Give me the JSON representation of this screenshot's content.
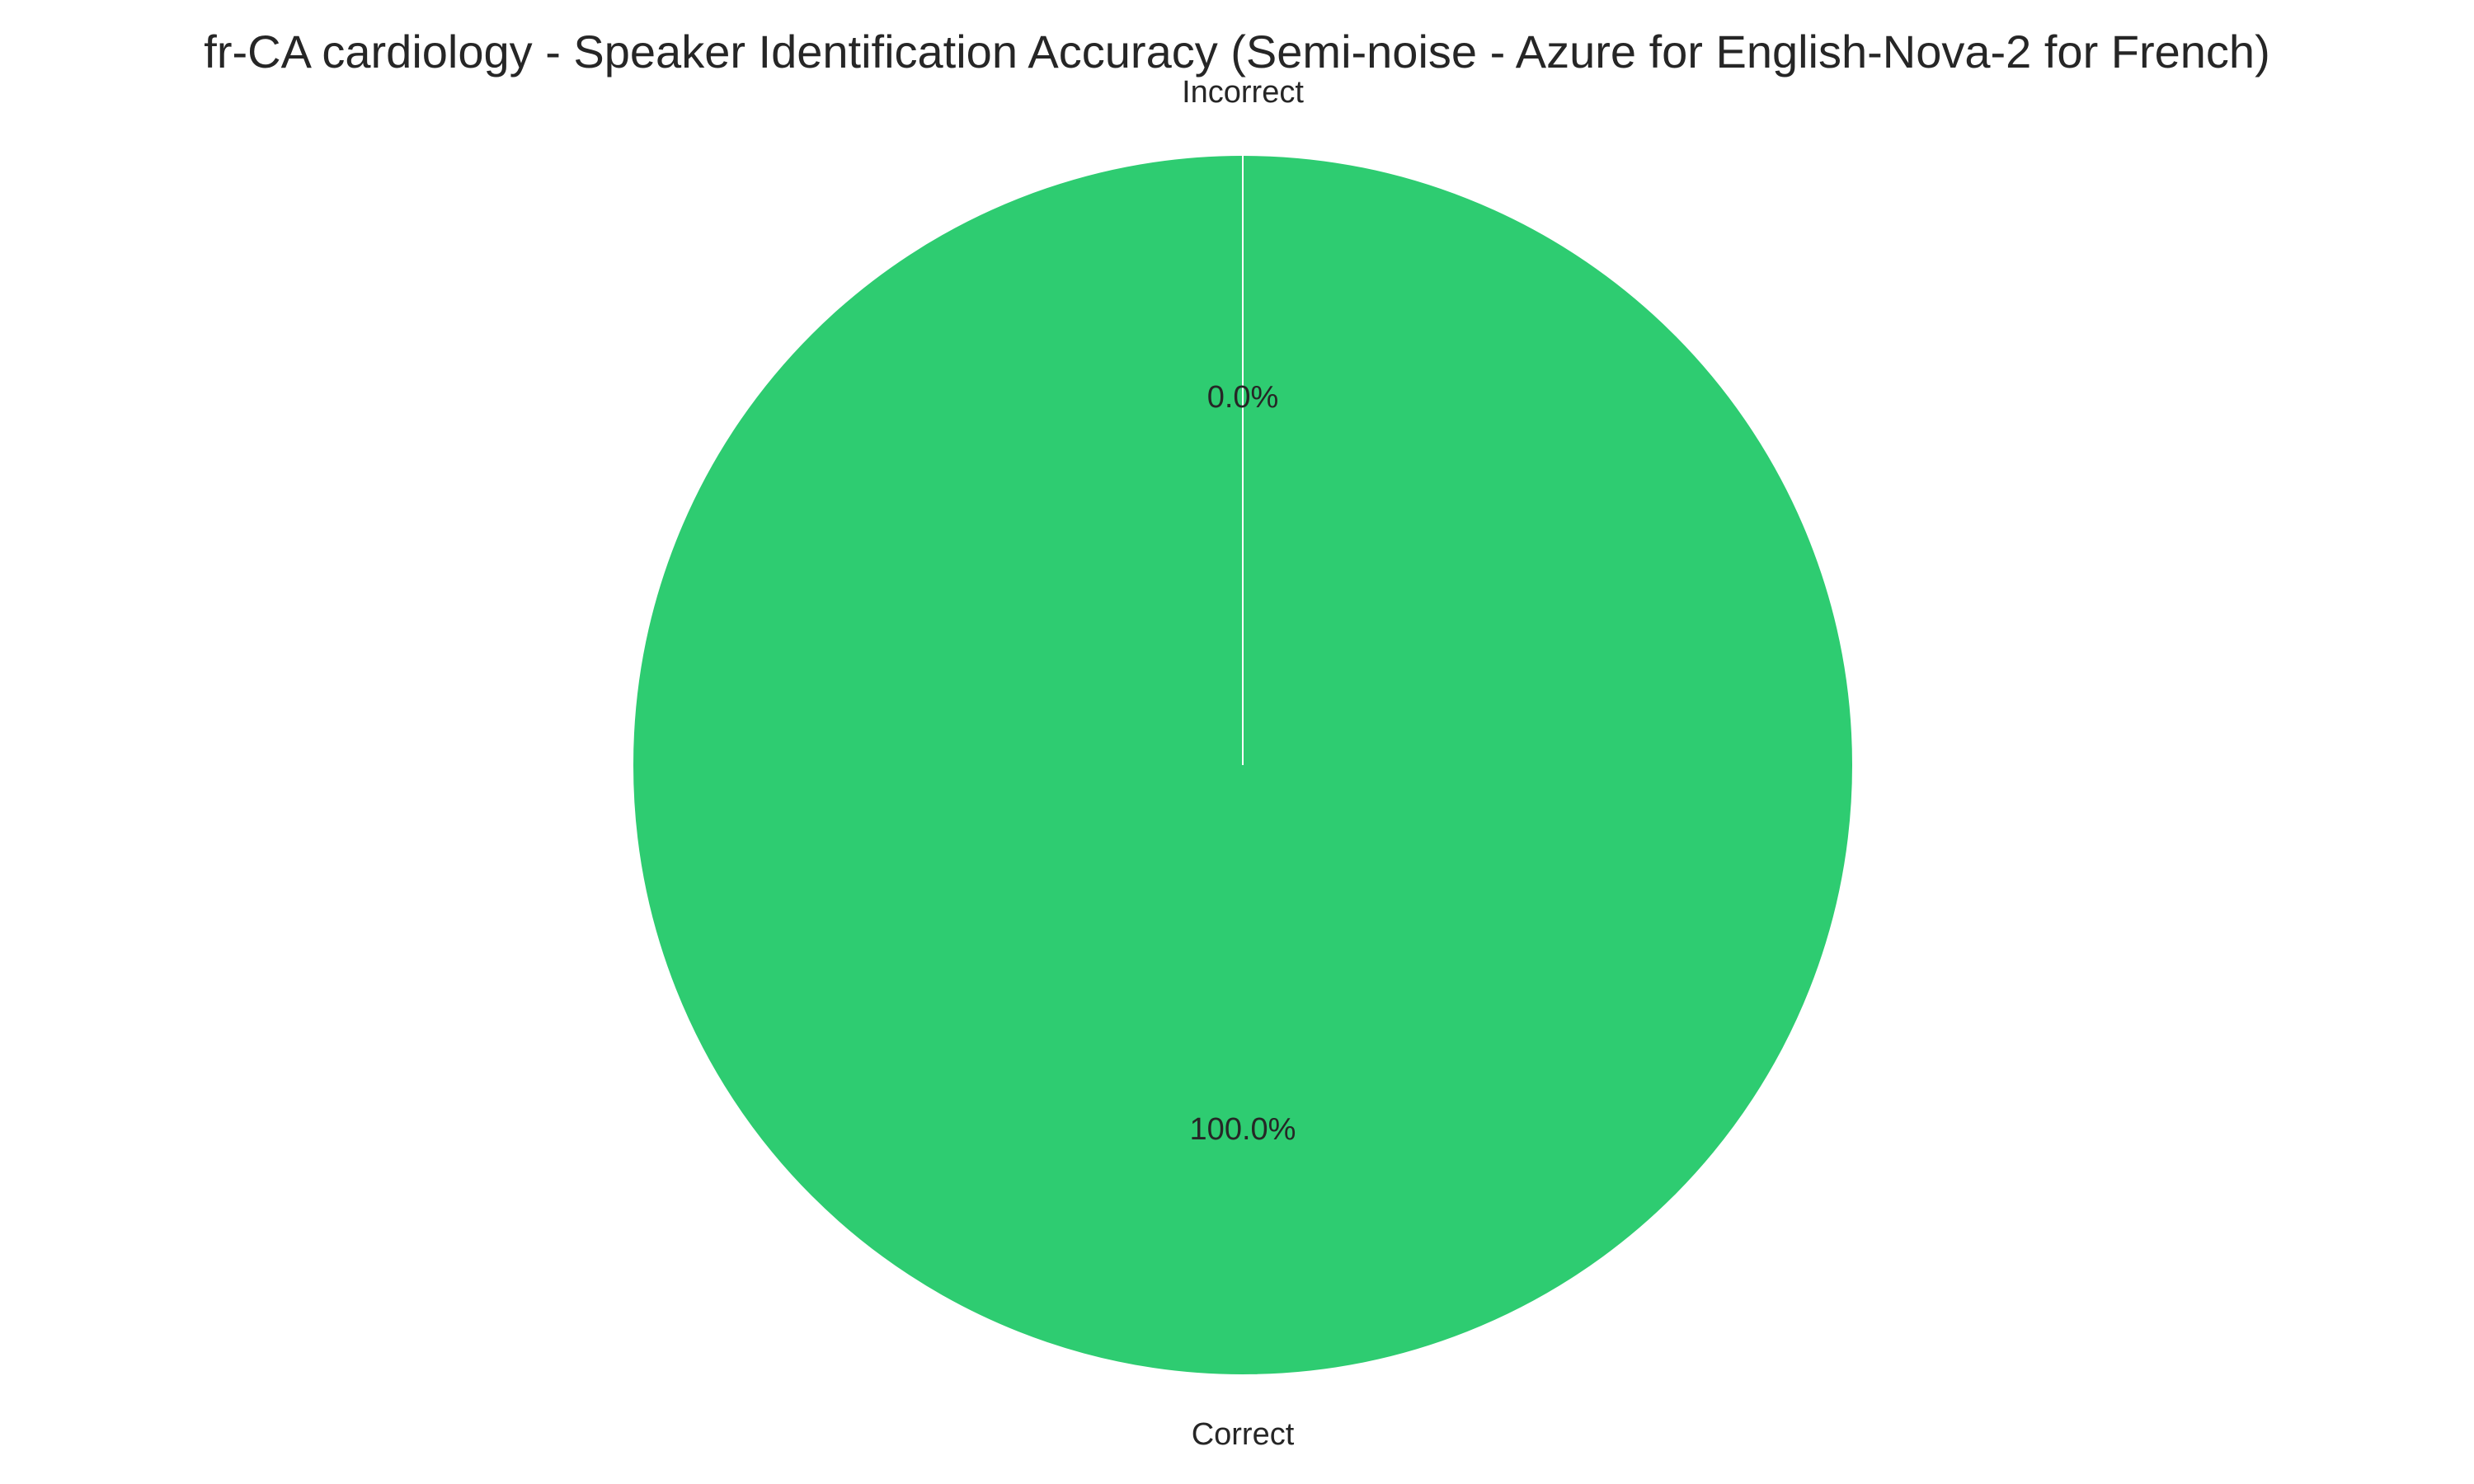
{
  "chart_data": {
    "type": "pie",
    "title": "fr-CA cardiology - Speaker Identification Accuracy (Semi-noise - Azure for English-Nova-2 for French)",
    "categories": [
      "Correct",
      "Incorrect"
    ],
    "values": [
      100.0,
      0.0
    ],
    "percent_labels": [
      "100.0%",
      "0.0%"
    ],
    "colors": [
      "#2ecc71",
      "#e74c3c"
    ],
    "edge_color": "#ffffff"
  }
}
